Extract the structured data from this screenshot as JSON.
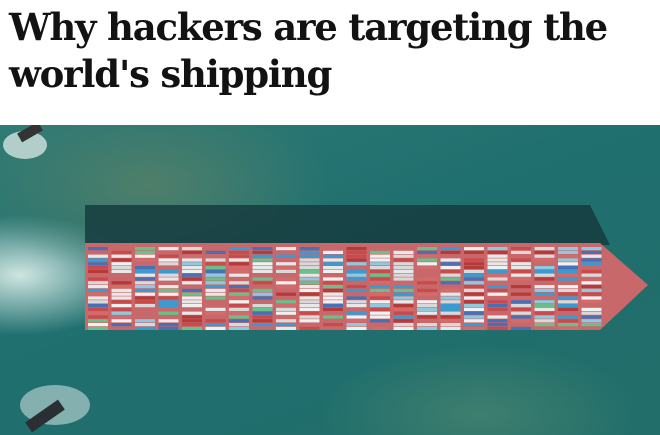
{
  "article": {
    "headline": "Why hackers are targeting the world's shipping",
    "image": {
      "subject": "container-ship-aerial-photo"
    }
  },
  "colors": {
    "text": "#121212",
    "sea": "#1f6f6f",
    "hull": "#c8686a"
  }
}
